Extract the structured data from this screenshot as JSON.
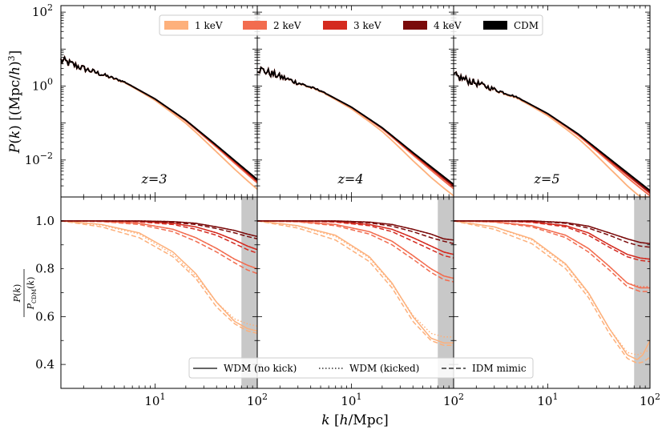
{
  "chart_data": {
    "type": "line",
    "layout": "2 rows x 3 columns, shared axes",
    "xlabel": "k [h/Mpc]",
    "xscale": "log",
    "xlim": [
      1.2,
      100
    ],
    "x_ticks": [
      "10^1",
      "10^2"
    ],
    "top_row": {
      "ylabel": "P(k) [(Mpc/h)^3]",
      "yscale": "log",
      "ylim": [
        0.001,
        150
      ],
      "y_ticks": [
        "10^2",
        "10^0",
        "10^-2"
      ],
      "legend": {
        "placement": "top-center",
        "entries": [
          {
            "label": "1 keV",
            "color": "#fdb07b"
          },
          {
            "label": "2 keV",
            "color": "#f26c4f"
          },
          {
            "label": "3 keV",
            "color": "#d42a1f"
          },
          {
            "label": "4 keV",
            "color": "#7a0a0a"
          },
          {
            "label": "CDM",
            "color": "#000000"
          }
        ]
      }
    },
    "bottom_row": {
      "ylabel": "P(k)/P_CDM(k)",
      "ylim": [
        0.3,
        1.1
      ],
      "y_ticks": [
        "1.0",
        "0.8",
        "0.6",
        "0.4"
      ],
      "shaded_band_x": [
        70,
        100
      ],
      "legend": {
        "placement": "bottom-center",
        "entries": [
          {
            "label": "WDM (no kick)",
            "style": "solid"
          },
          {
            "label": "WDM (kicked)",
            "style": "dotted"
          },
          {
            "label": "IDM mimic",
            "style": "dashed"
          }
        ]
      }
    },
    "panels": [
      {
        "label": "z=3",
        "P_CDM_points": [
          [
            1.2,
            5.0
          ],
          [
            2,
            3.0
          ],
          [
            5,
            1.3
          ],
          [
            10,
            0.45
          ],
          [
            20,
            0.12
          ],
          [
            40,
            0.025
          ],
          [
            100,
            0.003
          ]
        ],
        "ratio_series": [
          {
            "model": "1 keV",
            "x": [
              1.2,
              3,
              7,
              15,
              25,
              40,
              60,
              80,
              100
            ],
            "solid": [
              1.0,
              0.985,
              0.95,
              0.87,
              0.78,
              0.66,
              0.58,
              0.55,
              0.54
            ],
            "dotted": [
              1.0,
              0.982,
              0.945,
              0.86,
              0.77,
              0.66,
              0.59,
              0.57,
              0.56
            ],
            "dashed": [
              1.0,
              0.975,
              0.93,
              0.85,
              0.76,
              0.64,
              0.57,
              0.54,
              0.53
            ]
          },
          {
            "model": "2 keV",
            "x": [
              1.2,
              3,
              7,
              15,
              25,
              40,
              60,
              80,
              100
            ],
            "solid": [
              1.0,
              0.998,
              0.99,
              0.965,
              0.93,
              0.885,
              0.84,
              0.815,
              0.8
            ],
            "dotted": [
              1.0,
              0.998,
              0.99,
              0.965,
              0.93,
              0.885,
              0.84,
              0.815,
              0.8
            ],
            "dashed": [
              1.0,
              0.997,
              0.985,
              0.955,
              0.915,
              0.87,
              0.825,
              0.795,
              0.78
            ]
          },
          {
            "model": "3 keV",
            "x": [
              1.2,
              3,
              7,
              15,
              25,
              40,
              60,
              80,
              100
            ],
            "solid": [
              1.0,
              1.0,
              0.998,
              0.99,
              0.975,
              0.95,
              0.92,
              0.895,
              0.88
            ],
            "dotted": [
              1.0,
              1.0,
              0.998,
              0.99,
              0.975,
              0.95,
              0.92,
              0.895,
              0.88
            ],
            "dashed": [
              1.0,
              1.0,
              0.996,
              0.985,
              0.965,
              0.94,
              0.905,
              0.88,
              0.865
            ]
          },
          {
            "model": "4 keV",
            "x": [
              1.2,
              3,
              7,
              15,
              25,
              40,
              60,
              80,
              100
            ],
            "solid": [
              1.0,
              1.0,
              1.0,
              0.997,
              0.99,
              0.975,
              0.96,
              0.945,
              0.935
            ],
            "dotted": [
              1.0,
              1.0,
              1.0,
              0.997,
              0.99,
              0.975,
              0.96,
              0.945,
              0.935
            ],
            "dashed": [
              1.0,
              1.0,
              0.999,
              0.994,
              0.985,
              0.968,
              0.95,
              0.935,
              0.925
            ]
          }
        ]
      },
      {
        "label": "z=4",
        "P_CDM_points": [
          [
            1.2,
            3.0
          ],
          [
            2,
            1.8
          ],
          [
            5,
            0.75
          ],
          [
            10,
            0.27
          ],
          [
            20,
            0.075
          ],
          [
            40,
            0.016
          ],
          [
            100,
            0.0022
          ]
        ],
        "ratio_series": [
          {
            "model": "1 keV",
            "x": [
              1.2,
              3,
              7,
              15,
              25,
              40,
              60,
              80,
              100
            ],
            "solid": [
              1.0,
              0.98,
              0.94,
              0.85,
              0.74,
              0.6,
              0.51,
              0.49,
              0.49
            ],
            "dotted": [
              1.0,
              0.978,
              0.935,
              0.845,
              0.735,
              0.605,
              0.53,
              0.515,
              0.515
            ],
            "dashed": [
              1.0,
              0.97,
              0.92,
              0.83,
              0.72,
              0.58,
              0.5,
              0.48,
              0.48
            ]
          },
          {
            "model": "2 keV",
            "x": [
              1.2,
              3,
              7,
              15,
              25,
              40,
              60,
              80,
              100
            ],
            "solid": [
              1.0,
              0.997,
              0.985,
              0.955,
              0.915,
              0.855,
              0.8,
              0.77,
              0.76
            ],
            "dotted": [
              1.0,
              0.997,
              0.985,
              0.955,
              0.915,
              0.855,
              0.8,
              0.77,
              0.76
            ],
            "dashed": [
              1.0,
              0.996,
              0.98,
              0.945,
              0.9,
              0.84,
              0.785,
              0.755,
              0.745
            ]
          },
          {
            "model": "3 keV",
            "x": [
              1.2,
              3,
              7,
              15,
              25,
              40,
              60,
              80,
              100
            ],
            "solid": [
              1.0,
              1.0,
              0.997,
              0.985,
              0.965,
              0.93,
              0.895,
              0.87,
              0.86
            ],
            "dotted": [
              1.0,
              1.0,
              0.997,
              0.985,
              0.965,
              0.93,
              0.895,
              0.87,
              0.86
            ],
            "dashed": [
              1.0,
              1.0,
              0.995,
              0.98,
              0.955,
              0.915,
              0.88,
              0.855,
              0.845
            ]
          },
          {
            "model": "4 keV",
            "x": [
              1.2,
              3,
              7,
              15,
              25,
              40,
              60,
              80,
              100
            ],
            "solid": [
              1.0,
              1.0,
              1.0,
              0.995,
              0.985,
              0.965,
              0.945,
              0.925,
              0.92
            ],
            "dotted": [
              1.0,
              1.0,
              1.0,
              0.995,
              0.985,
              0.965,
              0.945,
              0.925,
              0.92
            ],
            "dashed": [
              1.0,
              1.0,
              0.999,
              0.992,
              0.978,
              0.955,
              0.93,
              0.915,
              0.905
            ]
          }
        ]
      },
      {
        "label": "z=5",
        "P_CDM_points": [
          [
            1.2,
            1.9
          ],
          [
            2,
            1.2
          ],
          [
            5,
            0.5
          ],
          [
            10,
            0.18
          ],
          [
            20,
            0.05
          ],
          [
            40,
            0.011
          ],
          [
            100,
            0.0015
          ]
        ],
        "ratio_series": [
          {
            "model": "1 keV",
            "x": [
              1.2,
              3,
              7,
              15,
              25,
              40,
              60,
              75,
              85,
              100
            ],
            "solid": [
              1.0,
              0.975,
              0.925,
              0.82,
              0.7,
              0.55,
              0.44,
              0.42,
              0.44,
              0.5
            ],
            "dotted": [
              1.0,
              0.975,
              0.92,
              0.815,
              0.695,
              0.55,
              0.45,
              0.44,
              0.45,
              0.46
            ],
            "dashed": [
              1.0,
              0.965,
              0.905,
              0.8,
              0.68,
              0.53,
              0.425,
              0.405,
              0.41,
              0.43
            ]
          },
          {
            "model": "2 keV",
            "x": [
              1.2,
              3,
              7,
              15,
              25,
              40,
              60,
              80,
              100
            ],
            "solid": [
              1.0,
              0.996,
              0.98,
              0.94,
              0.885,
              0.81,
              0.74,
              0.72,
              0.72
            ],
            "dotted": [
              1.0,
              0.996,
              0.98,
              0.94,
              0.885,
              0.81,
              0.74,
              0.725,
              0.725
            ],
            "dashed": [
              1.0,
              0.995,
              0.975,
              0.93,
              0.87,
              0.795,
              0.725,
              0.705,
              0.705
            ]
          },
          {
            "model": "3 keV",
            "x": [
              1.2,
              3,
              7,
              15,
              25,
              40,
              60,
              80,
              100
            ],
            "solid": [
              1.0,
              1.0,
              0.996,
              0.98,
              0.95,
              0.9,
              0.86,
              0.845,
              0.84
            ],
            "dotted": [
              1.0,
              1.0,
              0.996,
              0.98,
              0.95,
              0.9,
              0.86,
              0.845,
              0.84
            ],
            "dashed": [
              1.0,
              1.0,
              0.994,
              0.975,
              0.94,
              0.89,
              0.85,
              0.835,
              0.83
            ]
          },
          {
            "model": "4 keV",
            "x": [
              1.2,
              3,
              7,
              15,
              25,
              40,
              60,
              80,
              100
            ],
            "solid": [
              1.0,
              1.0,
              1.0,
              0.993,
              0.978,
              0.95,
              0.925,
              0.91,
              0.905
            ],
            "dotted": [
              1.0,
              1.0,
              1.0,
              0.993,
              0.978,
              0.95,
              0.925,
              0.91,
              0.905
            ],
            "dashed": [
              1.0,
              1.0,
              0.999,
              0.99,
              0.97,
              0.94,
              0.91,
              0.895,
              0.89
            ]
          }
        ]
      }
    ]
  }
}
